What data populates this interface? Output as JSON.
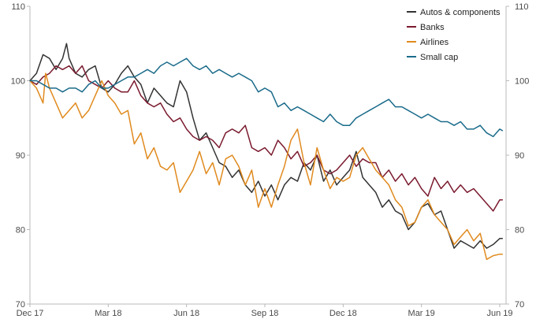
{
  "chart_data": {
    "type": "line",
    "title": "",
    "xlabel": "",
    "ylabel": "",
    "ylim": [
      70,
      110
    ],
    "yticks": [
      70,
      80,
      90,
      100,
      110
    ],
    "y_tick_labels": [
      "70",
      "80",
      "90",
      "100",
      "110"
    ],
    "x_tick_labels": [
      "Dec 17",
      "Mar 18",
      "Jun 18",
      "Sep 18",
      "Dec 18",
      "Mar 19",
      "Jun 19"
    ],
    "x_tick_positions": [
      0,
      3,
      6,
      9,
      12,
      15,
      18
    ],
    "x_range": [
      0,
      18
    ],
    "grid": false,
    "secondary_y_axis": true,
    "legend_position": "top-right",
    "series": [
      {
        "name": "Autos & components",
        "color": "#333333",
        "x": [
          0,
          0.25,
          0.5,
          0.75,
          1,
          1.25,
          1.4,
          1.5,
          1.75,
          2,
          2.25,
          2.5,
          2.75,
          3,
          3.25,
          3.5,
          3.75,
          4,
          4.25,
          4.5,
          4.75,
          5,
          5.25,
          5.5,
          5.75,
          6,
          6.25,
          6.5,
          6.75,
          7,
          7.25,
          7.5,
          7.75,
          8,
          8.25,
          8.5,
          8.75,
          9,
          9.25,
          9.5,
          9.75,
          10,
          10.25,
          10.5,
          10.75,
          11,
          11.25,
          11.5,
          11.75,
          12,
          12.25,
          12.5,
          12.75,
          13,
          13.25,
          13.5,
          13.75,
          14,
          14.25,
          14.5,
          14.75,
          15,
          15.25,
          15.5,
          15.75,
          16,
          16.25,
          16.5,
          16.75,
          17,
          17.25,
          17.5,
          17.75,
          18,
          18.1
        ],
        "values": [
          100,
          101,
          103.5,
          103,
          101.5,
          103,
          105,
          103,
          101,
          100.5,
          101.5,
          102,
          99,
          98.5,
          99.5,
          101,
          102,
          100.5,
          99.5,
          97,
          99,
          98,
          97,
          96.5,
          100,
          98.5,
          95,
          92,
          93,
          91,
          89,
          88.5,
          87,
          88,
          86,
          85,
          86.5,
          84.5,
          86,
          84,
          86,
          87,
          86.5,
          89,
          88,
          90,
          86.5,
          88,
          86,
          87,
          88,
          90.5,
          87,
          86,
          85,
          83,
          84,
          82.5,
          82,
          80,
          81,
          83,
          83.5,
          82,
          82.5,
          80,
          77.5,
          78.5,
          78,
          77.5,
          78.5,
          77.5,
          78,
          78.8,
          78.8
        ]
      },
      {
        "name": "Banks",
        "color": "#7a1a2e",
        "x": [
          0,
          0.25,
          0.5,
          0.75,
          1,
          1.25,
          1.5,
          1.75,
          2,
          2.25,
          2.5,
          2.75,
          3,
          3.25,
          3.5,
          3.75,
          4,
          4.25,
          4.5,
          4.75,
          5,
          5.25,
          5.5,
          5.75,
          6,
          6.25,
          6.5,
          6.75,
          7,
          7.25,
          7.5,
          7.75,
          8,
          8.25,
          8.5,
          8.75,
          9,
          9.25,
          9.5,
          9.75,
          10,
          10.25,
          10.5,
          10.75,
          11,
          11.25,
          11.5,
          11.75,
          12,
          12.25,
          12.5,
          12.75,
          13,
          13.25,
          13.5,
          13.75,
          14,
          14.25,
          14.5,
          14.75,
          15,
          15.25,
          15.5,
          15.75,
          16,
          16.25,
          16.5,
          16.75,
          17,
          17.25,
          17.5,
          17.75,
          18,
          18.1
        ],
        "values": [
          100,
          99.5,
          100.5,
          101,
          102,
          101.5,
          102,
          101,
          102,
          100,
          99.5,
          99,
          100,
          99,
          98.5,
          98.5,
          100,
          98,
          97,
          96.5,
          97,
          95.5,
          94.5,
          95,
          93.5,
          92.5,
          92,
          92.5,
          92,
          91,
          93,
          93.5,
          93,
          94,
          91,
          90.5,
          91,
          90,
          92,
          91,
          89.5,
          90.5,
          88.5,
          89,
          90,
          88,
          87.5,
          88,
          89,
          90,
          88.5,
          89.5,
          89,
          89,
          87,
          88,
          86.5,
          87.5,
          86,
          87,
          85.5,
          84.5,
          87,
          85.5,
          86.5,
          85,
          86,
          85,
          85.5,
          84.5,
          83.5,
          82.5,
          84,
          84
        ]
      },
      {
        "name": "Airlines",
        "color": "#e08a1e",
        "x": [
          0,
          0.25,
          0.5,
          0.6,
          0.75,
          1,
          1.25,
          1.5,
          1.75,
          2,
          2.25,
          2.5,
          2.75,
          3,
          3.25,
          3.5,
          3.75,
          4,
          4.25,
          4.5,
          4.75,
          5,
          5.25,
          5.5,
          5.75,
          6,
          6.25,
          6.5,
          6.75,
          7,
          7.25,
          7.5,
          7.75,
          8,
          8.25,
          8.5,
          8.75,
          9,
          9.25,
          9.5,
          9.75,
          10,
          10.25,
          10.5,
          10.75,
          11,
          11.25,
          11.5,
          11.75,
          12,
          12.25,
          12.5,
          12.75,
          13,
          13.25,
          13.5,
          13.75,
          14,
          14.25,
          14.5,
          14.75,
          15,
          15.25,
          15.5,
          15.75,
          16,
          16.25,
          16.5,
          16.75,
          17,
          17.25,
          17.5,
          17.75,
          18,
          18.1
        ],
        "values": [
          100,
          99,
          97,
          101,
          99,
          97,
          95,
          96,
          97,
          95,
          96,
          98,
          100,
          98,
          97,
          95.5,
          96,
          91.5,
          93,
          89.5,
          91,
          88.5,
          88,
          89,
          85,
          86.5,
          88,
          90.5,
          87.5,
          89,
          86,
          89.5,
          90,
          88.5,
          86,
          88,
          83,
          85.5,
          83,
          86,
          88.5,
          92,
          93.5,
          89,
          86,
          91,
          88,
          85.5,
          87,
          86.5,
          87,
          90,
          91,
          89.5,
          88,
          87,
          86,
          84,
          83,
          80.5,
          81,
          83,
          84,
          82,
          81,
          80,
          78,
          79,
          80,
          78.5,
          79.5,
          76,
          76.5,
          76.7,
          76.7
        ]
      },
      {
        "name": "Small cap",
        "color": "#1a6b8a",
        "x": [
          0,
          0.25,
          0.5,
          0.75,
          1,
          1.25,
          1.5,
          1.75,
          2,
          2.25,
          2.5,
          2.75,
          3,
          3.25,
          3.5,
          3.75,
          4,
          4.25,
          4.5,
          4.75,
          5,
          5.25,
          5.5,
          5.75,
          6,
          6.25,
          6.5,
          6.75,
          7,
          7.25,
          7.5,
          7.75,
          8,
          8.25,
          8.5,
          8.75,
          9,
          9.25,
          9.5,
          9.75,
          10,
          10.25,
          10.5,
          10.75,
          11,
          11.25,
          11.5,
          11.75,
          12,
          12.25,
          12.5,
          12.75,
          13,
          13.25,
          13.5,
          13.75,
          14,
          14.25,
          14.5,
          14.75,
          15,
          15.25,
          15.5,
          15.75,
          16,
          16.25,
          16.5,
          16.75,
          17,
          17.25,
          17.5,
          17.75,
          18,
          18.1
        ],
        "values": [
          100,
          100,
          99.5,
          99,
          99,
          98.5,
          99,
          99,
          98.5,
          99.5,
          100,
          99,
          99,
          99.5,
          100,
          100.5,
          100.5,
          101,
          101.5,
          101,
          102,
          102.5,
          102,
          102.5,
          103,
          102,
          101.5,
          102,
          101,
          101.5,
          101,
          100.5,
          101,
          100.5,
          100,
          98.5,
          99,
          98.5,
          96.5,
          97,
          96,
          96.5,
          96,
          95.5,
          95,
          94.5,
          95.5,
          94.5,
          94,
          94,
          95,
          95.5,
          96,
          96.5,
          97,
          97.5,
          96.5,
          96.5,
          96,
          95.5,
          95,
          95.5,
          95,
          94.5,
          94.5,
          94,
          94.5,
          93.5,
          93.5,
          94,
          93,
          92.5,
          93.5,
          93.3
        ]
      }
    ]
  }
}
